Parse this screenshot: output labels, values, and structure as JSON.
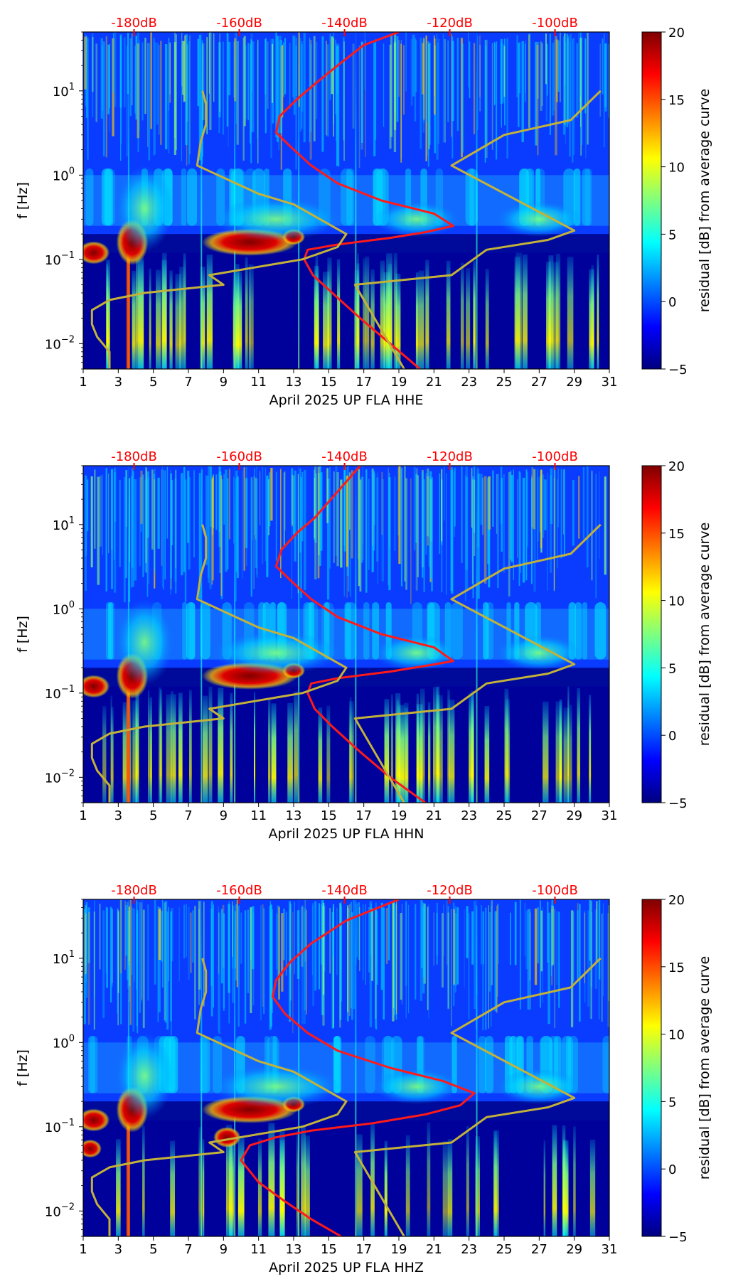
{
  "chart_data": [
    {
      "type": "heatmap",
      "title": "",
      "xlabel": "April 2025 UP FLA  HHE",
      "ylabel": "f [Hz]",
      "xlim": [
        1,
        31
      ],
      "x_ticks": [
        "1",
        "3",
        "5",
        "7",
        "9",
        "11",
        "13",
        "15",
        "17",
        "19",
        "21",
        "23",
        "25",
        "27",
        "29",
        "31"
      ],
      "y_scale": "log",
      "ylim": [
        0.005,
        50
      ],
      "y_ticks": [
        {
          "base": "10",
          "exp": "−2"
        },
        {
          "base": "10",
          "exp": "−1"
        },
        {
          "base": "10",
          "exp": "0"
        },
        {
          "base": "10",
          "exp": "1"
        }
      ],
      "top_axis_labels": [
        "-180dB",
        "-160dB",
        "-140dB",
        "-120dB",
        "-100dB"
      ],
      "colorbar": {
        "label": "residual [dB] from average curve",
        "range": [
          -5,
          20
        ],
        "ticks": [
          "−5",
          "0",
          "5",
          "10",
          "15",
          "20"
        ]
      },
      "series": [
        {
          "name": "average PSD curve (red)",
          "x": [
            20.2,
            18.5,
            16.8,
            15.2,
            14.1,
            13.6,
            13.8,
            15.5,
            18.5,
            20.5,
            22.1,
            21.0,
            18.0,
            15.5,
            14.0,
            12.8,
            12.0,
            12.2,
            13.2,
            14.2,
            15.5,
            17.0,
            19.0
          ],
          "f": [
            0.005,
            0.01,
            0.02,
            0.04,
            0.065,
            0.1,
            0.13,
            0.15,
            0.18,
            0.21,
            0.25,
            0.35,
            0.5,
            0.8,
            1.3,
            2.2,
            3.2,
            5.0,
            8.0,
            12.0,
            20.0,
            35.0,
            50.0
          ]
        },
        {
          "name": "model curve (yellow, left)",
          "x": [
            2.5,
            2.5,
            1.8,
            1.5,
            1.5,
            2.5,
            4.5,
            9.0,
            8.2,
            13.5,
            15.5,
            16.0,
            13.0,
            11.0,
            7.5,
            7.7,
            8.0,
            8.0,
            7.8
          ],
          "f": [
            0.005,
            0.008,
            0.012,
            0.017,
            0.025,
            0.033,
            0.04,
            0.05,
            0.065,
            0.1,
            0.14,
            0.2,
            0.45,
            0.6,
            1.3,
            2.5,
            4.0,
            7.0,
            10.0
          ]
        },
        {
          "name": "model curve (yellow, right)",
          "x": [
            19.3,
            16.5,
            22.0,
            24.0,
            27.5,
            29.0,
            22.0,
            25.0,
            28.8,
            30.5
          ],
          "f": [
            0.005,
            0.05,
            0.065,
            0.13,
            0.17,
            0.22,
            1.3,
            3.0,
            4.5,
            10.0
          ]
        }
      ]
    },
    {
      "type": "heatmap",
      "title": "",
      "xlabel": "April 2025 UP FLA  HHN",
      "ylabel": "f [Hz]",
      "xlim": [
        1,
        31
      ],
      "x_ticks": [
        "1",
        "3",
        "5",
        "7",
        "9",
        "11",
        "13",
        "15",
        "17",
        "19",
        "21",
        "23",
        "25",
        "27",
        "29",
        "31"
      ],
      "y_scale": "log",
      "ylim": [
        0.005,
        50
      ],
      "y_ticks": [
        {
          "base": "10",
          "exp": "−2"
        },
        {
          "base": "10",
          "exp": "−1"
        },
        {
          "base": "10",
          "exp": "0"
        },
        {
          "base": "10",
          "exp": "1"
        }
      ],
      "top_axis_labels": [
        "-180dB",
        "-160dB",
        "-140dB",
        "-120dB",
        "-100dB"
      ],
      "colorbar": {
        "label": "residual [dB] from average curve",
        "range": [
          -5,
          20
        ],
        "ticks": [
          "−5",
          "0",
          "5",
          "10",
          "15",
          "20"
        ]
      },
      "series": [
        {
          "name": "average PSD curve (red)",
          "x": [
            20.5,
            18.5,
            16.8,
            15.2,
            14.2,
            13.8,
            14.0,
            15.5,
            18.5,
            20.5,
            22.1,
            21.0,
            18.0,
            15.5,
            14.0,
            12.8,
            12.0,
            12.3,
            13.2,
            14.2,
            15.3,
            16.8
          ],
          "f": [
            0.005,
            0.01,
            0.02,
            0.04,
            0.065,
            0.1,
            0.13,
            0.15,
            0.18,
            0.21,
            0.24,
            0.35,
            0.5,
            0.8,
            1.3,
            2.2,
            3.2,
            5.0,
            8.0,
            12.0,
            22.0,
            50.0
          ]
        },
        {
          "name": "model curve (yellow, left)",
          "x": [
            2.5,
            2.5,
            1.8,
            1.5,
            1.5,
            2.5,
            4.5,
            9.0,
            8.2,
            13.5,
            15.5,
            16.0,
            13.0,
            11.0,
            7.5,
            7.7,
            8.0,
            8.0,
            7.8
          ],
          "f": [
            0.005,
            0.008,
            0.012,
            0.017,
            0.025,
            0.033,
            0.04,
            0.05,
            0.065,
            0.1,
            0.14,
            0.2,
            0.45,
            0.6,
            1.3,
            2.5,
            4.0,
            7.0,
            10.0
          ]
        },
        {
          "name": "model curve (yellow, right)",
          "x": [
            19.3,
            16.5,
            22.0,
            24.0,
            27.5,
            29.0,
            22.0,
            25.0,
            28.8,
            30.5
          ],
          "f": [
            0.005,
            0.05,
            0.065,
            0.13,
            0.17,
            0.22,
            1.3,
            3.0,
            4.5,
            10.0
          ]
        }
      ]
    },
    {
      "type": "heatmap",
      "title": "",
      "xlabel": "April 2025 UP FLA  HHZ",
      "ylabel": "f [Hz]",
      "xlim": [
        1,
        31
      ],
      "x_ticks": [
        "1",
        "3",
        "5",
        "7",
        "9",
        "11",
        "13",
        "15",
        "17",
        "19",
        "21",
        "23",
        "25",
        "27",
        "29",
        "31"
      ],
      "y_scale": "log",
      "ylim": [
        0.005,
        50
      ],
      "y_ticks": [
        {
          "base": "10",
          "exp": "−2"
        },
        {
          "base": "10",
          "exp": "−1"
        },
        {
          "base": "10",
          "exp": "0"
        },
        {
          "base": "10",
          "exp": "1"
        }
      ],
      "top_axis_labels": [
        "-180dB",
        "-160dB",
        "-140dB",
        "-120dB",
        "-100dB"
      ],
      "colorbar": {
        "label": "residual [dB] from average curve",
        "range": [
          -5,
          20
        ],
        "ticks": [
          "−5",
          "0",
          "5",
          "10",
          "15",
          "20"
        ]
      },
      "series": [
        {
          "name": "average PSD curve (red)",
          "x": [
            15.7,
            14.0,
            12.5,
            11.0,
            10.0,
            10.5,
            12.0,
            14.0,
            17.5,
            20.5,
            22.5,
            23.3,
            21.5,
            18.5,
            15.5,
            13.8,
            12.5,
            11.8,
            12.0,
            12.8,
            14.0,
            16.0,
            19.0
          ],
          "f": [
            0.005,
            0.008,
            0.013,
            0.022,
            0.04,
            0.06,
            0.075,
            0.09,
            0.11,
            0.14,
            0.18,
            0.25,
            0.35,
            0.5,
            0.8,
            1.3,
            2.2,
            3.5,
            5.5,
            9.0,
            15.0,
            28.0,
            50.0
          ]
        },
        {
          "name": "model curve (yellow, left)",
          "x": [
            2.5,
            2.5,
            1.8,
            1.5,
            1.5,
            2.5,
            4.5,
            9.0,
            8.2,
            13.5,
            15.5,
            16.0,
            13.0,
            11.0,
            7.5,
            7.7,
            8.0,
            8.0,
            7.8
          ],
          "f": [
            0.005,
            0.008,
            0.012,
            0.017,
            0.025,
            0.033,
            0.04,
            0.05,
            0.065,
            0.1,
            0.14,
            0.2,
            0.45,
            0.6,
            1.3,
            2.5,
            4.0,
            7.0,
            10.0
          ]
        },
        {
          "name": "model curve (yellow, right)",
          "x": [
            19.3,
            16.5,
            22.0,
            24.0,
            27.5,
            29.0,
            22.0,
            25.0,
            28.8,
            30.5
          ],
          "f": [
            0.005,
            0.05,
            0.065,
            0.13,
            0.17,
            0.22,
            1.3,
            3.0,
            4.5,
            10.0
          ]
        }
      ]
    }
  ],
  "colors": {
    "average_curve": "#ff1a1a",
    "model_curve": "#c2b23a",
    "top_labels": "#ff0000",
    "jet": [
      "#00007f",
      "#0000ff",
      "#007fff",
      "#00ffff",
      "#7fff7f",
      "#ffff00",
      "#ff7f00",
      "#ff0000",
      "#7f0000"
    ]
  }
}
